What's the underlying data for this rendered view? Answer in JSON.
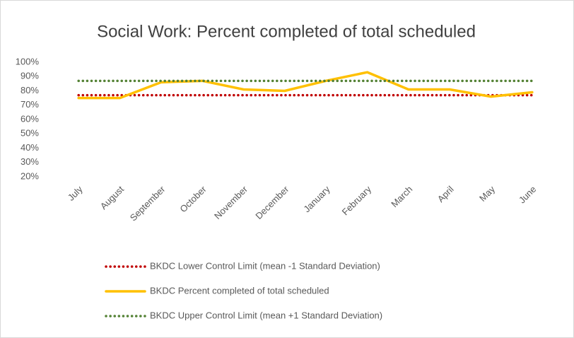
{
  "chart_data": {
    "type": "line",
    "title": "Social Work: Percent completed of total scheduled",
    "categories": [
      "July",
      "August",
      "September",
      "October",
      "November",
      "December",
      "January",
      "February",
      "March",
      "April",
      "May",
      "June"
    ],
    "series": [
      {
        "name": "BKDC Lower Control Limit (mean -1 Standard Deviation)",
        "color": "#c00000",
        "dash": "dotted",
        "values": [
          77,
          77,
          77,
          77,
          77,
          77,
          77,
          77,
          77,
          77,
          77,
          77
        ]
      },
      {
        "name": "BKDC Percent completed of total scheduled",
        "color": "#ffc000",
        "dash": "solid",
        "values": [
          75,
          75,
          86,
          87,
          81,
          80,
          87,
          93,
          81,
          81,
          76,
          79
        ]
      },
      {
        "name": "BKDC Upper Control Limit (mean +1 Standard Deviation)",
        "color": "#548235",
        "dash": "dotted",
        "values": [
          87,
          87,
          87,
          87,
          87,
          87,
          87,
          87,
          87,
          87,
          87,
          87
        ]
      }
    ],
    "ylim": [
      20,
      100
    ],
    "yticks": [
      {
        "value": 20,
        "label": "20%"
      },
      {
        "value": 30,
        "label": "30%"
      },
      {
        "value": 40,
        "label": "40%"
      },
      {
        "value": 50,
        "label": "50%"
      },
      {
        "value": 60,
        "label": "60%"
      },
      {
        "value": 70,
        "label": "70%"
      },
      {
        "value": 80,
        "label": "80%"
      },
      {
        "value": 90,
        "label": "90%"
      },
      {
        "value": 100,
        "label": "100%"
      }
    ],
    "grid": false,
    "legend": "bottom"
  }
}
